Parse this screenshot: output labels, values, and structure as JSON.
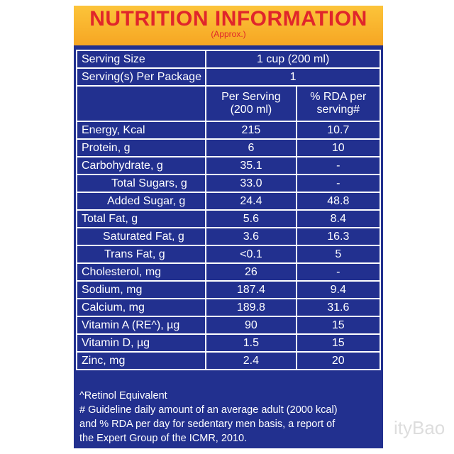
{
  "header": {
    "title": "NUTRITION INFORMATION",
    "subtitle": "(Approx.)"
  },
  "serving": [
    [
      "Serving Size",
      "1 cup (200 ml)"
    ],
    [
      "Serving(s) Per Package",
      "1"
    ]
  ],
  "columns": [
    [
      "Per Serving",
      "(200 ml)"
    ],
    [
      "% RDA per",
      "serving#"
    ]
  ],
  "rows": [
    [
      "Energy, Kcal",
      "215",
      "10.7"
    ],
    [
      "Protein, g",
      "6",
      "10"
    ],
    [
      "Carbohydrate, g",
      "35.1",
      "-"
    ],
    [
      "Total Sugars, g",
      "33.0",
      "-"
    ],
    [
      "Added Sugar, g",
      "24.4",
      "48.8"
    ],
    [
      "Total Fat, g",
      "5.6",
      "8.4"
    ],
    [
      "Saturated Fat, g",
      "3.6",
      "16.3"
    ],
    [
      "Trans Fat, g",
      "<0.1",
      "5"
    ],
    [
      "Cholesterol, mg",
      "26",
      "-"
    ],
    [
      "Sodium, mg",
      "187.4",
      "9.4"
    ],
    [
      "Calcium, mg",
      "189.8",
      "31.6"
    ],
    [
      "Vitamin A (RE^), µg",
      "90",
      "15"
    ],
    [
      "Vitamin D, µg",
      "1.5",
      "15"
    ],
    [
      "Zinc, mg",
      "2.4",
      "20"
    ]
  ],
  "footnotes": [
    "^Retinol Equivalent",
    "# Guideline daily amount of an average adult (2000 kcal)",
    "and % RDA per day for sedentary men basis, a report of",
    "the Expert Group of the ICMR, 2010."
  ],
  "watermark": "ityBao"
}
